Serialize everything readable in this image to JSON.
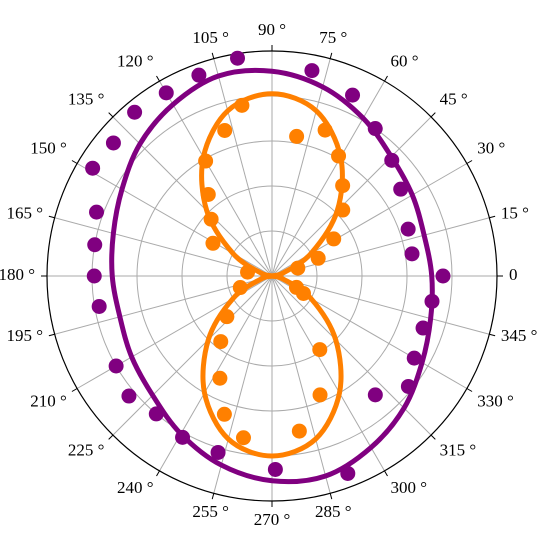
{
  "chart_data": {
    "type": "polar",
    "rlim": [
      0,
      1
    ],
    "rgrid": [
      0.2,
      0.4,
      0.6,
      0.8
    ],
    "grid": true,
    "thetaticks": [
      0,
      {
        "value": 15,
        "label": "15 °"
      },
      {
        "value": 30,
        "label": "30 °"
      },
      {
        "value": 45,
        "label": "45 °"
      },
      {
        "value": 60,
        "label": "60 °"
      },
      {
        "value": 75,
        "label": "75 °"
      },
      {
        "value": 90,
        "label": "90 °"
      },
      {
        "value": 105,
        "label": "105 °"
      },
      {
        "value": 120,
        "label": "120 °"
      },
      {
        "value": 135,
        "label": "135 °"
      },
      {
        "value": 150,
        "label": "150 °"
      },
      {
        "value": 165,
        "label": "165 °"
      },
      {
        "value": 180,
        "label": "180 °"
      },
      {
        "value": 195,
        "label": "195 °"
      },
      {
        "value": 210,
        "label": "210 °"
      },
      {
        "value": 225,
        "label": "225 °"
      },
      {
        "value": 240,
        "label": "240 °"
      },
      {
        "value": 255,
        "label": "255 °"
      },
      {
        "value": 270,
        "label": "270 °"
      },
      {
        "value": 285,
        "label": "285 °"
      },
      {
        "value": 300,
        "label": "300 °"
      },
      {
        "value": 315,
        "label": "315 °"
      },
      {
        "value": 330,
        "label": "330 °"
      },
      {
        "value": 345,
        "label": "345 °"
      }
    ],
    "series": [
      {
        "mode": "line",
        "color": "#800080",
        "theta": [
          0,
          15,
          30,
          45,
          60,
          75,
          90,
          105,
          120,
          135,
          150,
          165,
          180,
          195,
          210,
          225,
          240,
          255,
          270,
          285,
          300,
          315,
          330,
          345
        ],
        "r": [
          0.71,
          0.7,
          0.72,
          0.75,
          0.81,
          0.87,
          0.91,
          0.92,
          0.88,
          0.83,
          0.77,
          0.73,
          0.71,
          0.7,
          0.72,
          0.75,
          0.81,
          0.87,
          0.91,
          0.92,
          0.88,
          0.83,
          0.77,
          0.73
        ]
      },
      {
        "mode": "markers",
        "color": "#800080",
        "theta": [
          0,
          9,
          19,
          34,
          44,
          55,
          66,
          79,
          99,
          110,
          120,
          130,
          140,
          149,
          160,
          170,
          180,
          190,
          210,
          220,
          230,
          241,
          253,
          271,
          291,
          311,
          321,
          330,
          341,
          351
        ],
        "r": [
          0.76,
          0.63,
          0.64,
          0.69,
          0.74,
          0.8,
          0.88,
          0.93,
          0.98,
          0.95,
          0.94,
          0.95,
          0.92,
          0.93,
          0.83,
          0.8,
          0.79,
          0.78,
          0.8,
          0.83,
          0.8,
          0.82,
          0.82,
          0.86,
          0.94,
          0.7,
          0.78,
          0.73,
          0.71,
          0.72
        ]
      },
      {
        "mode": "line",
        "color": "#ff8000",
        "theta": [
          0,
          15,
          30,
          45,
          60,
          75,
          90,
          105,
          120,
          135,
          150,
          165,
          180,
          195,
          210,
          225,
          240,
          255,
          270,
          285,
          300,
          315,
          330,
          345
        ],
        "r": [
          0,
          0.05,
          0.2,
          0.41,
          0.61,
          0.76,
          0.81,
          0.76,
          0.61,
          0.41,
          0.2,
          0.05,
          0,
          0.05,
          0.2,
          0.4,
          0.6,
          0.75,
          0.8,
          0.75,
          0.6,
          0.4,
          0.2,
          0.05
        ]
      },
      {
        "mode": "markers",
        "color": "#ff8000",
        "theta": [
          17,
          21,
          31,
          43,
          52,
          61,
          70,
          80,
          100,
          108,
          120,
          128,
          137,
          151,
          171,
          200,
          222,
          232,
          243,
          251,
          260,
          280,
          292,
          303,
          331,
          335
        ],
        "r": [
          0.12,
          0.22,
          0.32,
          0.43,
          0.51,
          0.61,
          0.69,
          0.63,
          0.77,
          0.68,
          0.59,
          0.46,
          0.37,
          0.3,
          0.11,
          0.15,
          0.27,
          0.37,
          0.51,
          0.65,
          0.73,
          0.7,
          0.57,
          0.39,
          0.16,
          0.12
        ]
      }
    ]
  }
}
